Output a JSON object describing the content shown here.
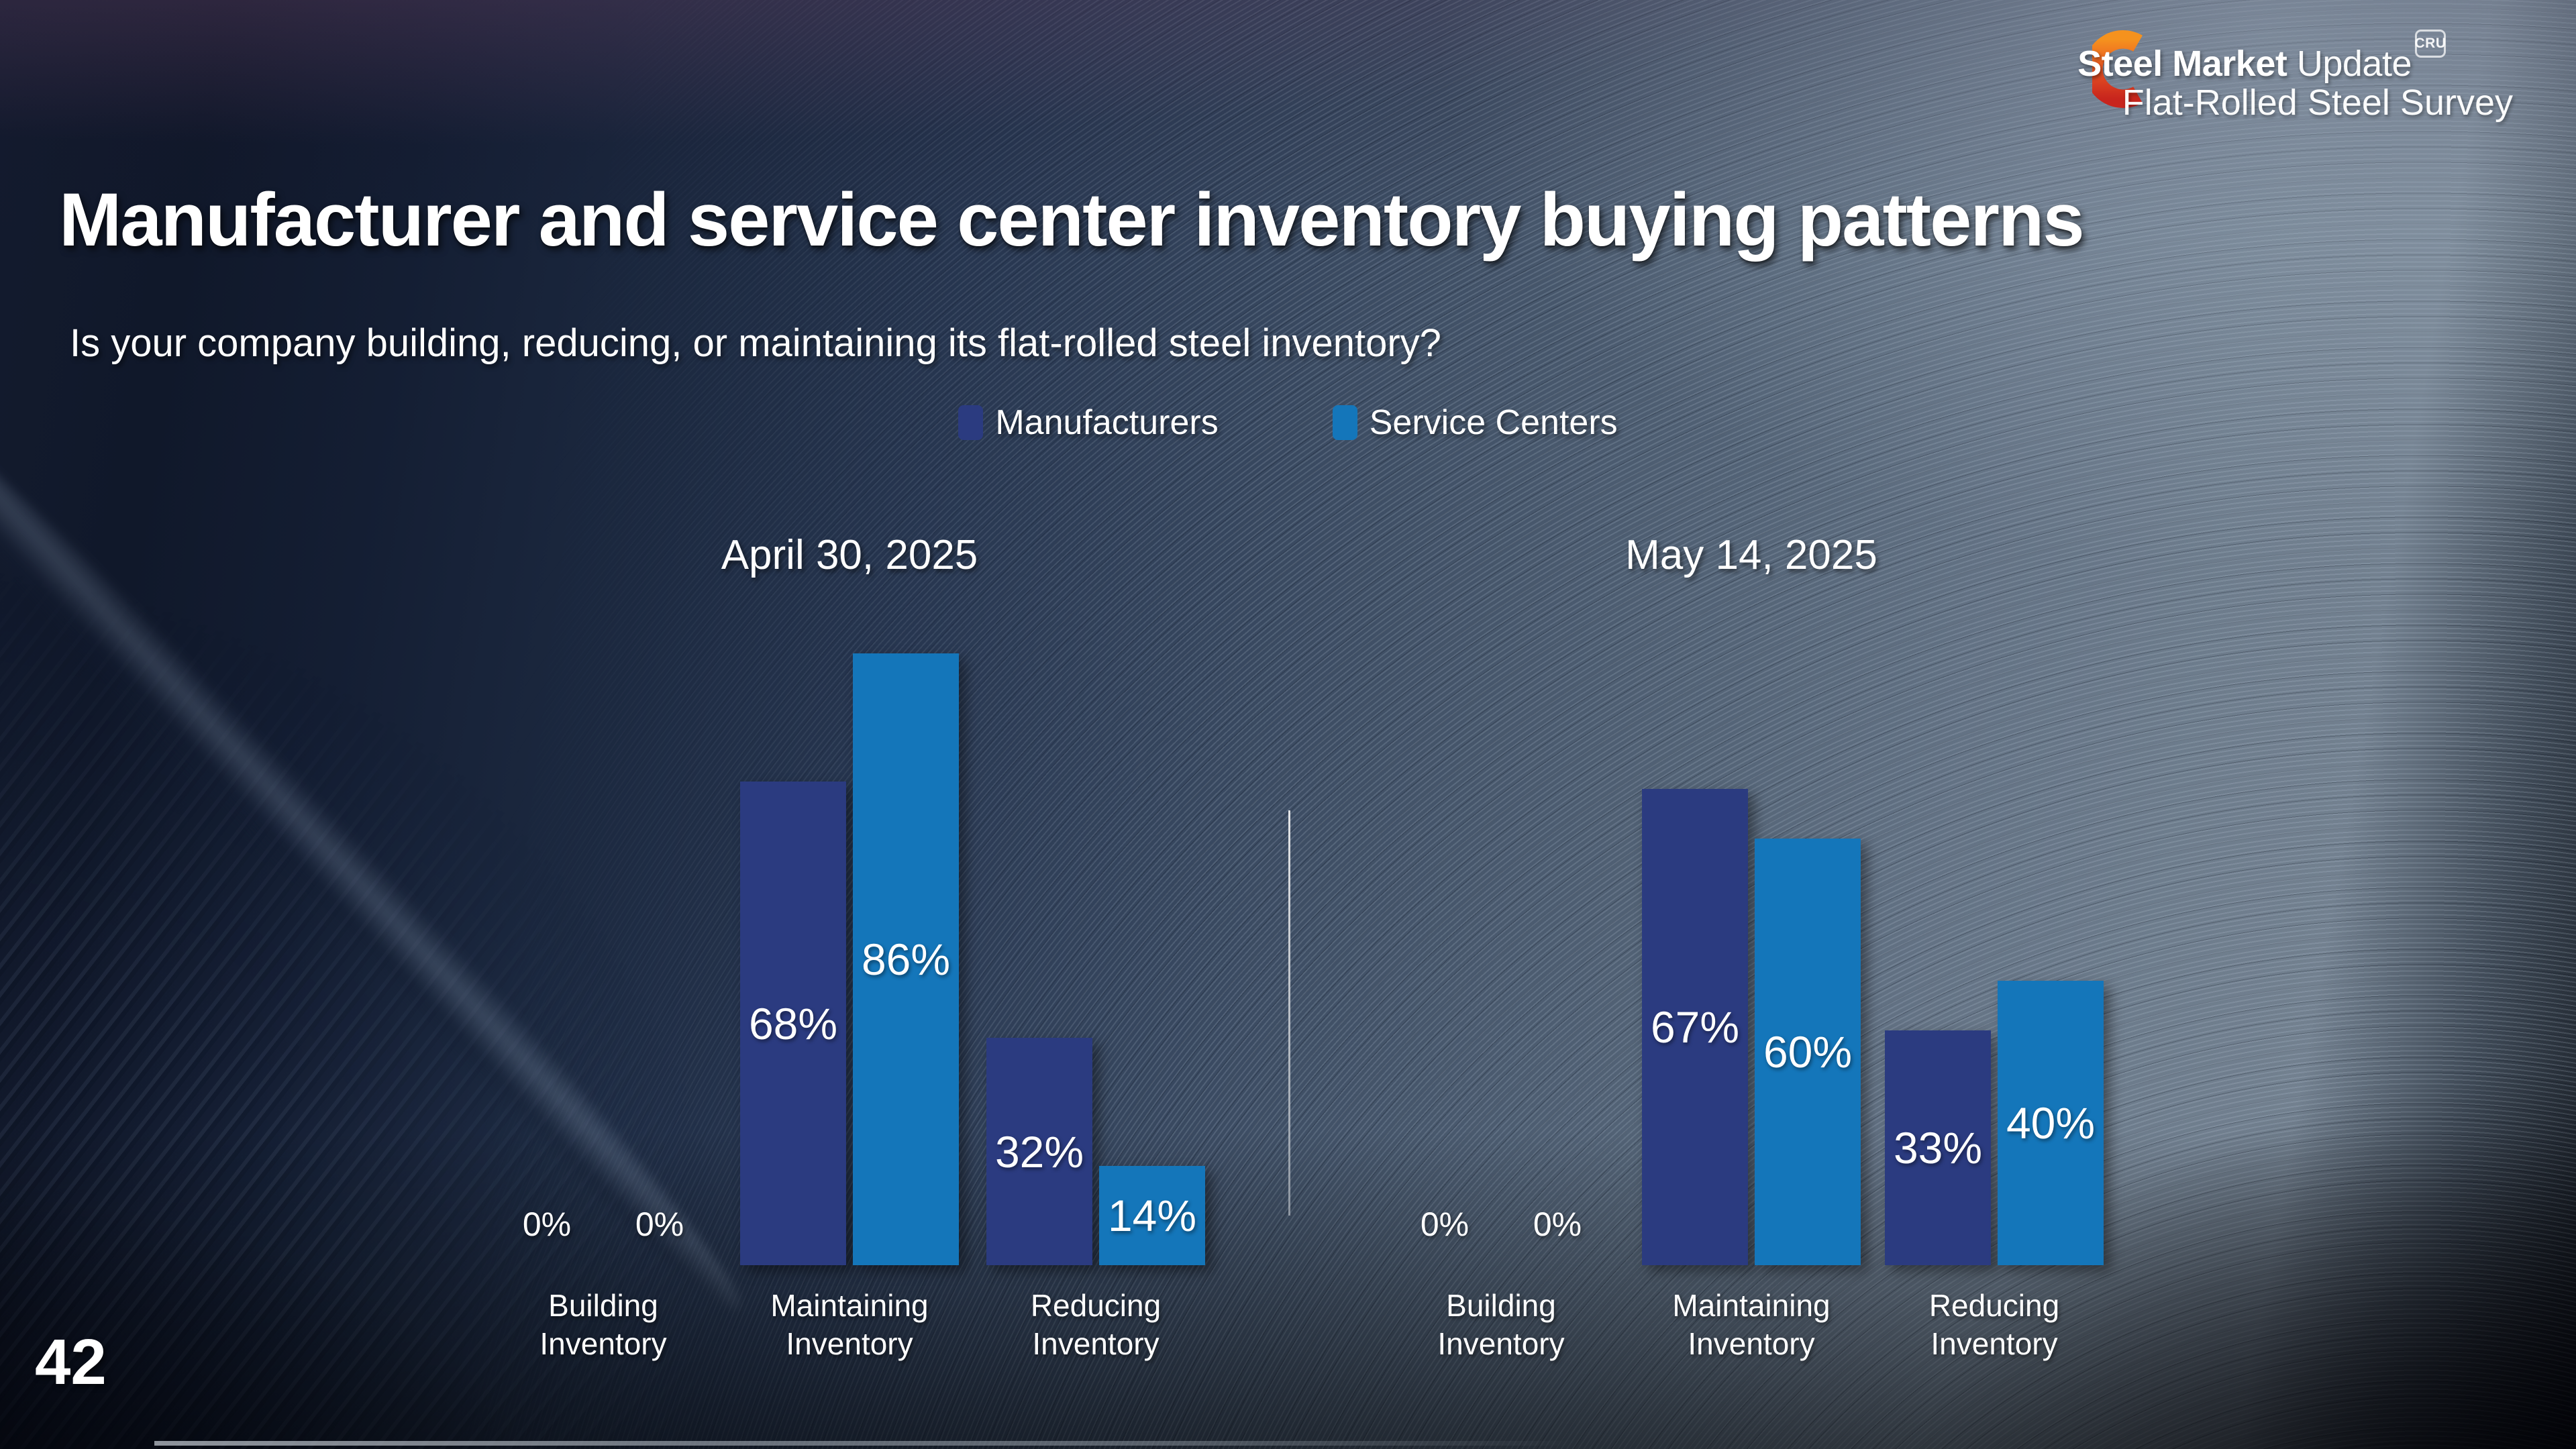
{
  "slide": {
    "title": "Manufacturer and service center inventory buying patterns",
    "question": "Is your company building, reducing, or maintaining its flat-rolled steel inventory?",
    "page_number": "42"
  },
  "logo": {
    "brand_bold": "Steel Market",
    "brand_light": " Update",
    "survey_line": "Flat-Rolled Steel Survey",
    "badge": "CRU",
    "crescent_top_color": "#f5921e",
    "crescent_bottom_color": "#c8251d"
  },
  "legend": [
    {
      "label": "Manufacturers",
      "color": "#2b3b80"
    },
    {
      "label": "Service Centers",
      "color": "#1476ba"
    }
  ],
  "chart_data": {
    "type": "bar",
    "unit": "%",
    "ylim": [
      0,
      100
    ],
    "grid": false,
    "legend_position": "top-center",
    "categories": [
      [
        "Building",
        "Inventory"
      ],
      [
        "Maintaining",
        "Inventory"
      ],
      [
        "Reducing",
        "Inventory"
      ]
    ],
    "charts": [
      {
        "title": "April 30, 2025",
        "series": [
          {
            "name": "Manufacturers",
            "values": [
              0,
              68,
              32
            ]
          },
          {
            "name": "Service Centers",
            "values": [
              0,
              86,
              14
            ]
          }
        ]
      },
      {
        "title": "May 14, 2025",
        "series": [
          {
            "name": "Manufacturers",
            "values": [
              0,
              67,
              33
            ]
          },
          {
            "name": "Service Centers",
            "values": [
              0,
              60,
              40
            ]
          }
        ]
      }
    ]
  }
}
